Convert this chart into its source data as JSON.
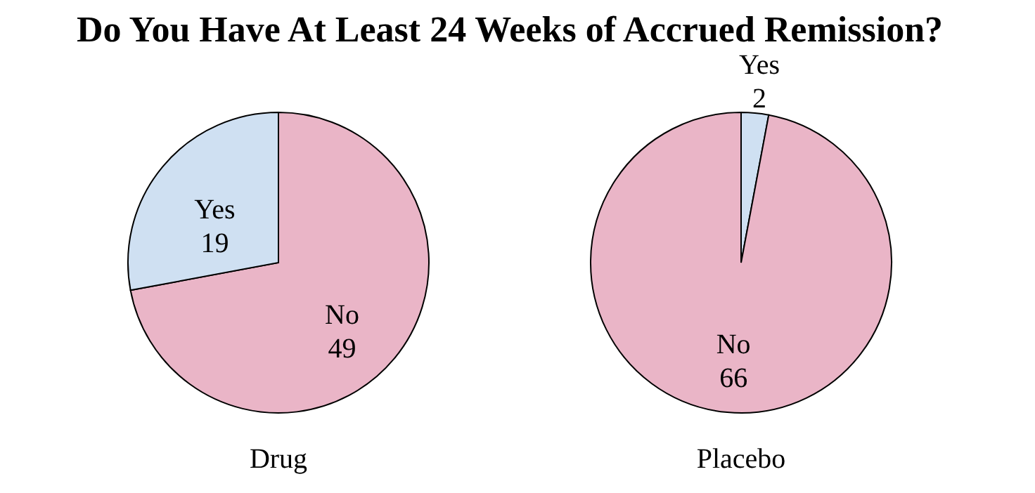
{
  "chart_data": [
    {
      "type": "pie",
      "title": "Do You Have At Least 24 Weeks of Accrued Remission?",
      "xlabel": "Drug",
      "categories": [
        "No",
        "Yes"
      ],
      "values": [
        49,
        19
      ],
      "colors": [
        "#eab5c7",
        "#cfe0f2"
      ],
      "data_labels": true
    },
    {
      "type": "pie",
      "xlabel": "Placebo",
      "categories": [
        "Yes",
        "No"
      ],
      "values": [
        2,
        66
      ],
      "colors": [
        "#cfe0f2",
        "#eab5c7"
      ],
      "data_labels": true
    }
  ]
}
